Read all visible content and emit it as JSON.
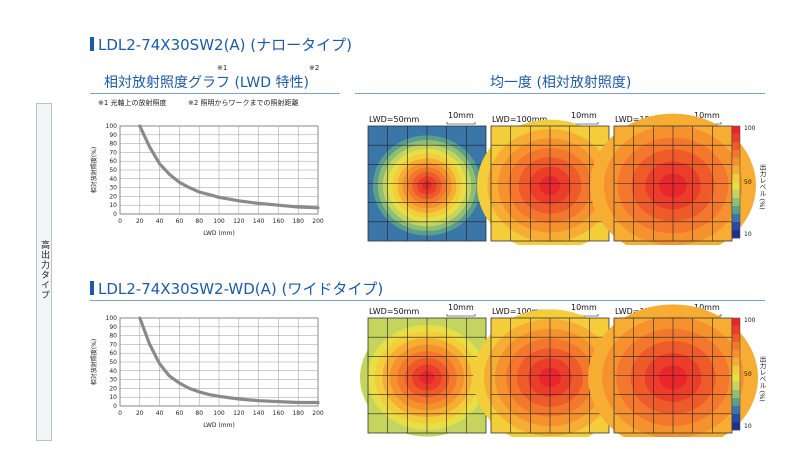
{
  "sidebar": {
    "label": "高出力タイプ"
  },
  "section1": {
    "title": "LDL2-74X30SW2(A) (ナロータイプ)",
    "graph_heading": "相対放射照度グラフ (LWD 特性)",
    "graph_heading_mark1": "※1",
    "graph_heading_mark2": "※2",
    "footnote1": "※1 光軸上の放射照度",
    "footnote2": "※2 照明からワークまでの照射距離",
    "uniformity_heading": "均一度 (相対放射照度)"
  },
  "section2": {
    "title": "LDL2-74X30SW2-WD(A) (ワイドタイプ)"
  },
  "maps": {
    "labels": [
      "LWD=50mm",
      "LWD=100mm",
      "LWD=150mm"
    ],
    "scale_label": "10mm"
  },
  "colorbar": {
    "ticks": [
      "100",
      "50",
      "10"
    ],
    "label": "出力レベル (%)",
    "colors": [
      "#e8262b",
      "#ec3d2a",
      "#ef5a2b",
      "#f3772c",
      "#f5922e",
      "#f7ad33",
      "#f4cd3a",
      "#e8de45",
      "#c4d45e",
      "#8fbd74",
      "#5c9e8e",
      "#3a76a8",
      "#2a4aa8",
      "#22308e"
    ]
  },
  "chart_data": [
    {
      "type": "line",
      "title": "",
      "xlabel": "LWD (mm)",
      "ylabel": "相対放射照度(%)",
      "xlim": [
        0,
        200
      ],
      "ylim": [
        0,
        100
      ],
      "xticks": [
        0,
        20,
        40,
        60,
        80,
        100,
        120,
        140,
        160,
        180,
        200
      ],
      "yticks": [
        0,
        10,
        20,
        30,
        40,
        50,
        60,
        70,
        80,
        90,
        100
      ],
      "grid": true,
      "series": [
        {
          "x": [
            20,
            30,
            40,
            50,
            60,
            70,
            80,
            90,
            100,
            120,
            140,
            160,
            180,
            200
          ],
          "y": [
            100,
            76,
            57,
            45,
            36,
            30,
            25,
            22,
            19,
            15,
            12,
            10,
            8,
            7
          ]
        }
      ]
    },
    {
      "type": "line",
      "title": "",
      "xlabel": "LWD (mm)",
      "ylabel": "相対放射照度(%)",
      "xlim": [
        0,
        200
      ],
      "ylim": [
        0,
        100
      ],
      "xticks": [
        0,
        20,
        40,
        60,
        80,
        100,
        120,
        140,
        160,
        180,
        200
      ],
      "yticks": [
        0,
        10,
        20,
        30,
        40,
        50,
        60,
        70,
        80,
        90,
        100
      ],
      "grid": true,
      "series": [
        {
          "x": [
            20,
            30,
            40,
            50,
            60,
            70,
            80,
            90,
            100,
            120,
            140,
            160,
            180,
            200
          ],
          "y": [
            100,
            70,
            48,
            34,
            26,
            20,
            16,
            13,
            11,
            8,
            6,
            5,
            4,
            4
          ]
        }
      ]
    }
  ]
}
